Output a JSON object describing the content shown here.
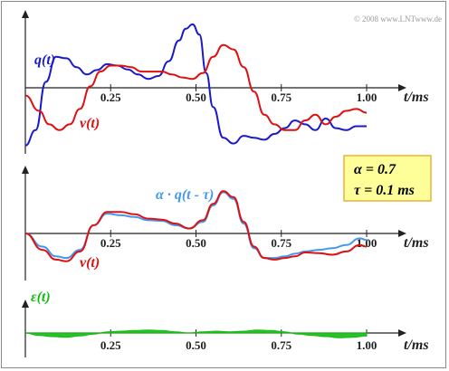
{
  "copyright": "© 2008 www.LNTwww.de",
  "xaxis_unit": "t/ms",
  "colors": {
    "q": "#1a1acc",
    "v": "#dd1111",
    "shifted": "#4499ee",
    "error": "#11bb11",
    "box_fill": "#ffff99",
    "box_border": "#e8b040"
  },
  "param_box": {
    "alpha": "α = 0.7",
    "tau": "τ = 0.1 ms"
  },
  "chart_data": [
    {
      "type": "line",
      "panel": "top",
      "xlabel": "t/ms",
      "xticks": [
        "0.25",
        "0.50",
        "0.75",
        "1.00"
      ],
      "xlim": [
        0,
        1.0
      ],
      "ylim": [
        -1.6,
        2.3
      ],
      "series": [
        {
          "name": "q(t)",
          "color": "#1a1acc",
          "x": [
            0,
            0.03,
            0.06,
            0.09,
            0.12,
            0.15,
            0.18,
            0.21,
            0.24,
            0.27,
            0.3,
            0.33,
            0.36,
            0.39,
            0.42,
            0.45,
            0.47,
            0.49,
            0.51,
            0.53,
            0.55,
            0.58,
            0.61,
            0.64,
            0.67,
            0.7,
            0.73,
            0.76,
            0.79,
            0.82,
            0.85,
            0.88,
            0.91,
            0.94,
            0.97,
            1.0
          ],
          "y": [
            -1.5,
            -1.1,
            0.2,
            1.05,
            1.0,
            0.7,
            0.45,
            0.6,
            0.8,
            0.75,
            0.62,
            0.45,
            0.3,
            0.4,
            0.9,
            1.6,
            2.0,
            2.15,
            1.8,
            0.5,
            -0.5,
            -1.3,
            -1.45,
            -1.25,
            -1.3,
            -1.35,
            -1.2,
            -1.05,
            -0.85,
            -0.95,
            -1.1,
            -0.8,
            -1.05,
            -1.1,
            -1.0,
            -1.0
          ]
        },
        {
          "name": "v(t)",
          "color": "#dd1111",
          "x": [
            0,
            0.04,
            0.07,
            0.1,
            0.13,
            0.16,
            0.19,
            0.22,
            0.25,
            0.28,
            0.31,
            0.34,
            0.37,
            0.4,
            0.43,
            0.46,
            0.49,
            0.52,
            0.55,
            0.58,
            0.61,
            0.64,
            0.67,
            0.7,
            0.73,
            0.76,
            0.79,
            0.82,
            0.85,
            0.88,
            0.91,
            0.94,
            0.97,
            1.0
          ],
          "y": [
            -0.2,
            -0.6,
            -0.95,
            -1.1,
            -0.95,
            -0.55,
            0.05,
            0.55,
            0.75,
            0.75,
            0.7,
            0.55,
            0.55,
            0.55,
            0.45,
            0.35,
            0.3,
            0.5,
            1.05,
            1.45,
            1.3,
            0.7,
            -0.1,
            -0.7,
            -0.95,
            -1.1,
            -1.1,
            -0.85,
            -0.7,
            -0.95,
            -0.75,
            -0.6,
            -0.55,
            -0.65
          ]
        }
      ]
    },
    {
      "type": "line",
      "panel": "middle",
      "xlabel": "t/ms",
      "xticks": [
        "0.25",
        "0.50",
        "0.75",
        "1.00"
      ],
      "xlim": [
        0,
        1.0
      ],
      "ylim": [
        -1.3,
        1.7
      ],
      "series": [
        {
          "name": "α · q(t - τ)",
          "color": "#4499ee",
          "x": [
            0,
            0.05,
            0.09,
            0.12,
            0.16,
            0.2,
            0.24,
            0.28,
            0.32,
            0.36,
            0.4,
            0.44,
            0.48,
            0.52,
            0.55,
            0.58,
            0.61,
            0.64,
            0.67,
            0.7,
            0.73,
            0.76,
            0.79,
            0.82,
            0.86,
            0.9,
            0.94,
            0.98,
            1.0
          ],
          "y": [
            0,
            -0.4,
            -0.7,
            -0.75,
            -0.5,
            0.25,
            0.6,
            0.55,
            0.5,
            0.4,
            0.38,
            0.25,
            0.15,
            0.35,
            0.85,
            1.25,
            1.05,
            0.3,
            -0.45,
            -0.75,
            -0.75,
            -0.7,
            -0.62,
            -0.55,
            -0.5,
            -0.45,
            -0.35,
            -0.15,
            -0.2
          ]
        },
        {
          "name": "v(t)",
          "color": "#dd1111",
          "x": [
            0,
            0.05,
            0.09,
            0.12,
            0.16,
            0.2,
            0.24,
            0.28,
            0.32,
            0.36,
            0.4,
            0.44,
            0.48,
            0.52,
            0.55,
            0.58,
            0.61,
            0.64,
            0.67,
            0.7,
            0.73,
            0.76,
            0.79,
            0.82,
            0.86,
            0.9,
            0.94,
            0.98,
            1.0
          ],
          "y": [
            0,
            -0.5,
            -0.8,
            -0.85,
            -0.55,
            0.25,
            0.65,
            0.65,
            0.58,
            0.45,
            0.42,
            0.3,
            0.15,
            0.4,
            0.9,
            1.28,
            1.1,
            0.35,
            -0.4,
            -0.75,
            -0.8,
            -0.75,
            -0.7,
            -0.58,
            -0.6,
            -0.65,
            -0.55,
            -0.35,
            -0.4
          ]
        }
      ]
    },
    {
      "type": "area",
      "panel": "bottom",
      "xlabel": "t/ms",
      "xticks": [
        "0.25",
        "0.50",
        "0.75",
        "1.00"
      ],
      "xlim": [
        0,
        1.0
      ],
      "ylim": [
        -0.3,
        0.3
      ],
      "series": [
        {
          "name": "ε(t)",
          "color": "#11bb11",
          "x": [
            0,
            0.04,
            0.08,
            0.12,
            0.16,
            0.2,
            0.24,
            0.28,
            0.32,
            0.36,
            0.4,
            0.44,
            0.48,
            0.52,
            0.56,
            0.6,
            0.64,
            0.68,
            0.72,
            0.76,
            0.8,
            0.84,
            0.88,
            0.92,
            0.96,
            1.0
          ],
          "y": [
            0.0,
            -0.04,
            -0.06,
            -0.07,
            -0.05,
            -0.02,
            0.02,
            0.03,
            0.04,
            0.05,
            0.04,
            0.02,
            0.0,
            0.02,
            0.03,
            0.02,
            0.03,
            0.05,
            0.04,
            0.02,
            -0.02,
            -0.04,
            -0.06,
            -0.08,
            -0.07,
            -0.05
          ]
        }
      ]
    }
  ]
}
